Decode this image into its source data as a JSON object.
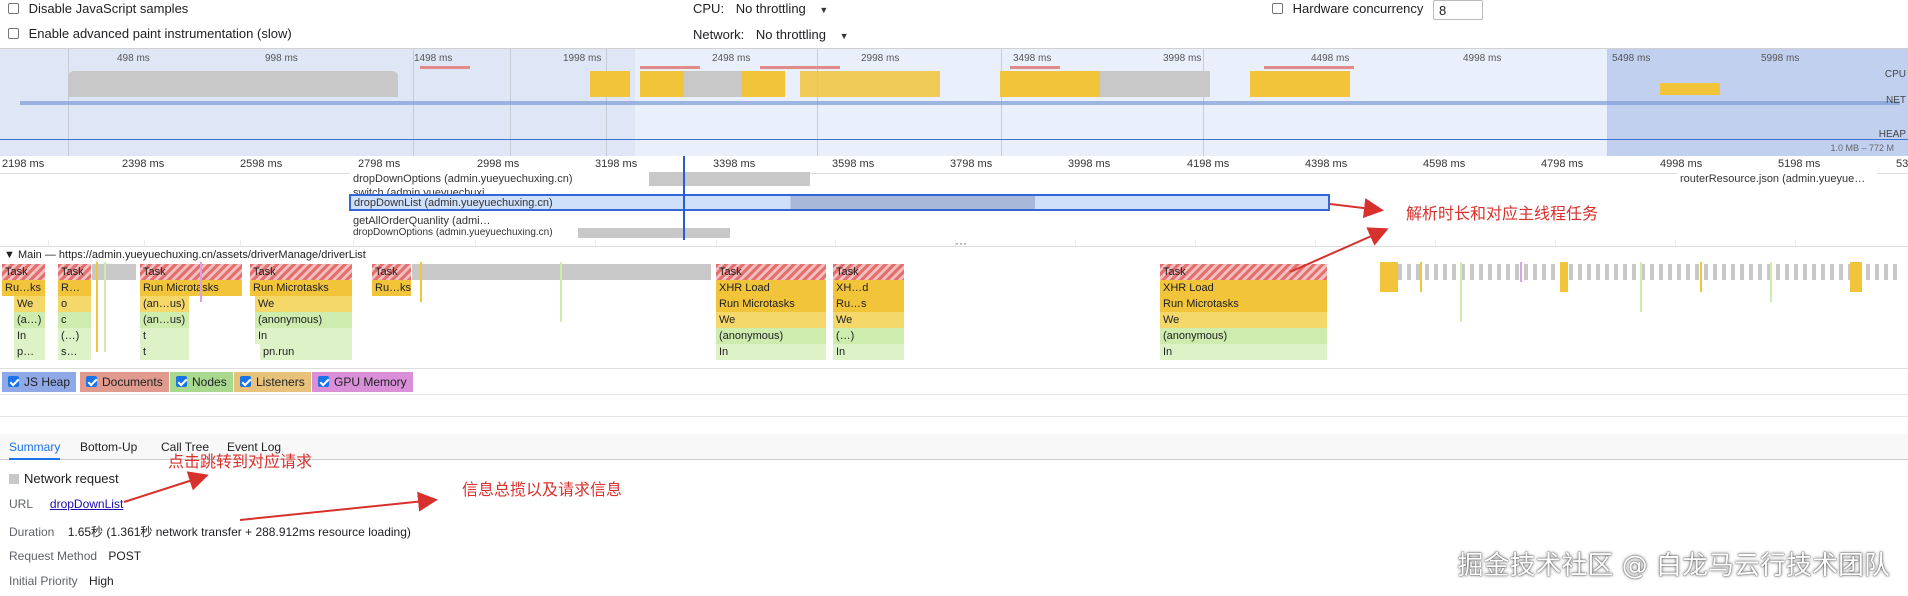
{
  "settings": {
    "disable_js_samples": "Disable JavaScript samples",
    "enable_paint": "Enable advanced paint instrumentation (slow)",
    "cpu_label": "CPU:",
    "cpu_value": "No throttling",
    "network_label": "Network:",
    "network_value": "No throttling",
    "hw_label": "Hardware concurrency",
    "hw_value": "8"
  },
  "overview": {
    "ticks": [
      "498 ms",
      "998 ms",
      "1498 ms",
      "1998 ms",
      "2498 ms",
      "2998 ms",
      "3498 ms",
      "3998 ms",
      "4498 ms",
      "4998 ms",
      "5498 ms",
      "5998 ms"
    ],
    "lane_labels": [
      "CPU",
      "NET",
      "HEAP"
    ],
    "heap_range": "1.0 MB – 772 M"
  },
  "ruler": {
    "ticks": [
      "2198 ms",
      "2398 ms",
      "2598 ms",
      "2798 ms",
      "2998 ms",
      "3198 ms",
      "3398 ms",
      "3598 ms",
      "3798 ms",
      "3998 ms",
      "4198 ms",
      "4398 ms",
      "4598 ms",
      "4798 ms",
      "4998 ms",
      "5198 ms",
      "53"
    ]
  },
  "network_requests": [
    "dropDownOptions (admin.yueyuechuxing.cn)",
    "switch (admin.yueyuechuxi…",
    "dropDownList (admin.yueyuechuxing.cn)",
    "getAllOrderQuanlity (admi…",
    "dropDownOptions (admin.yueyuechuxing.cn)",
    "routerResource.json (admin.yueyue…"
  ],
  "main_thread": {
    "title": "Main — https://admin.yueyuechuxing.cn/assets/driverManage/driverList",
    "task": "Task",
    "rows": {
      "r1": [
        "Ru…ks",
        "R…",
        "Run Microtasks",
        "Run Microtasks",
        "Ru…ks",
        "XHR Load",
        "XH…d",
        "XHR Load"
      ],
      "r2": [
        "We",
        "o",
        "(an…us)",
        "We",
        "Run Microtasks",
        "Ru…s",
        "Run Microtasks"
      ],
      "r3": [
        "(a…)",
        "c",
        "(an…us)",
        "(anonymous)",
        "We",
        "We",
        "We"
      ],
      "r4": [
        "In",
        "(…)",
        "t",
        "In",
        "(anonymous)",
        "(…)",
        "(anonymous)"
      ],
      "r5": [
        "p…",
        "s…",
        "t",
        "pn.run",
        "In",
        "In",
        "In"
      ]
    }
  },
  "memory": {
    "js_heap": "JS Heap",
    "documents": "Documents",
    "nodes": "Nodes",
    "listeners": "Listeners",
    "gpu_memory": "GPU Memory",
    "colors": {
      "js_heap": "#8fa8e6",
      "documents": "#e09a8e",
      "nodes": "#a8d98f",
      "listeners": "#e8c27a",
      "gpu_memory": "#d990d9"
    }
  },
  "tabs": [
    "Summary",
    "Bottom-Up",
    "Call Tree",
    "Event Log"
  ],
  "summary": {
    "title": "Network request",
    "url_label": "URL",
    "url_value": "dropDownList",
    "duration_label": "Duration",
    "duration_value": "1.65秒 (1.361秒 network transfer + 288.912ms resource loading)",
    "method_label": "Request Method",
    "method_value": "POST",
    "priority_label": "Initial Priority",
    "priority_value": "High"
  },
  "annotations": {
    "a1": "解析时长和对应主线程任务",
    "a2": "点击跳转到对应请求",
    "a3": "信息总揽以及请求信息"
  },
  "watermark": "掘金技术社区 @ 白龙马云行技术团队"
}
